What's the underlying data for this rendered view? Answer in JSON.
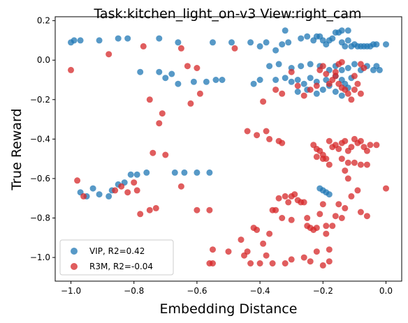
{
  "chart_data": {
    "type": "scatter",
    "title": "Task:kitchen_light_on-v3 View:right_cam",
    "xlabel": "Embedding Distance",
    "ylabel": "True Reward",
    "xlim": [
      -1.05,
      0.05
    ],
    "ylim": [
      -1.12,
      0.22
    ],
    "xticks": [
      -1.0,
      -0.8,
      -0.6,
      -0.4,
      -0.2,
      0.0
    ],
    "xtick_labels": [
      "−1.0",
      "−0.8",
      "−0.6",
      "−0.4",
      "−0.2",
      "0.0"
    ],
    "yticks": [
      0.2,
      0.0,
      -0.2,
      -0.4,
      -0.6,
      -0.8,
      -1.0
    ],
    "ytick_labels": [
      "0.2",
      "0.0",
      "−0.2",
      "−0.4",
      "−0.6",
      "−0.8",
      "−1.0"
    ],
    "grid": false,
    "legend_position": "lower-left",
    "series": [
      {
        "name": "VIP, R2=0.42",
        "color": "#1f77b4",
        "points": [
          [
            -1.0,
            0.09
          ],
          [
            -0.99,
            0.1
          ],
          [
            -0.97,
            0.1
          ],
          [
            -0.91,
            0.1
          ],
          [
            -0.85,
            0.11
          ],
          [
            -0.82,
            0.11
          ],
          [
            -0.72,
            0.11
          ],
          [
            -0.66,
            0.09
          ],
          [
            -0.55,
            0.09
          ],
          [
            -0.49,
            0.09
          ],
          [
            -0.43,
            0.09
          ],
          [
            -0.4,
            0.07
          ],
          [
            -0.38,
            0.09
          ],
          [
            -0.35,
            0.05
          ],
          [
            -0.33,
            0.08
          ],
          [
            -0.31,
            0.09
          ],
          [
            -0.27,
            0.11
          ],
          [
            -0.25,
            0.12
          ],
          [
            -0.23,
            0.1
          ],
          [
            -0.22,
            0.12
          ],
          [
            -0.21,
            0.12
          ],
          [
            -0.2,
            0.1
          ],
          [
            -0.19,
            0.08
          ],
          [
            -0.18,
            0.1
          ],
          [
            -0.17,
            0.11
          ],
          [
            -0.16,
            0.14
          ],
          [
            -0.15,
            0.14
          ],
          [
            -0.14,
            0.09
          ],
          [
            -0.13,
            0.07
          ],
          [
            -0.12,
            0.1
          ],
          [
            -0.11,
            0.07
          ],
          [
            -0.1,
            0.08
          ],
          [
            -0.09,
            0.07
          ],
          [
            -0.08,
            0.07
          ],
          [
            -0.07,
            0.07
          ],
          [
            -0.06,
            0.07
          ],
          [
            -0.05,
            0.07
          ],
          [
            -0.04,
            0.08
          ],
          [
            -0.03,
            0.08
          ],
          [
            0.0,
            0.08
          ],
          [
            -0.32,
            0.15
          ],
          [
            -0.14,
            0.15
          ],
          [
            -0.12,
            0.15
          ],
          [
            -0.37,
            -0.03
          ],
          [
            -0.34,
            -0.02
          ],
          [
            -0.3,
            -0.04
          ],
          [
            -0.27,
            -0.03
          ],
          [
            -0.24,
            -0.02
          ],
          [
            -0.21,
            -0.03
          ],
          [
            -0.18,
            -0.05
          ],
          [
            -0.16,
            -0.03
          ],
          [
            -0.14,
            -0.05
          ],
          [
            -0.12,
            -0.04
          ],
          [
            -0.1,
            -0.02
          ],
          [
            -0.08,
            -0.05
          ],
          [
            -0.06,
            -0.03
          ],
          [
            -0.04,
            -0.05
          ],
          [
            -0.03,
            -0.03
          ],
          [
            -0.02,
            -0.05
          ],
          [
            -0.11,
            -0.09
          ],
          [
            -0.14,
            -0.1
          ],
          [
            -0.16,
            -0.08
          ],
          [
            -0.19,
            -0.1
          ],
          [
            -0.22,
            -0.11
          ],
          [
            -0.24,
            -0.09
          ],
          [
            -0.26,
            -0.12
          ],
          [
            -0.28,
            -0.1
          ],
          [
            -0.3,
            -0.11
          ],
          [
            -0.32,
            -0.09
          ],
          [
            -0.13,
            -0.12
          ],
          [
            -0.12,
            -0.14
          ],
          [
            -0.18,
            -0.13
          ],
          [
            -0.2,
            -0.15
          ],
          [
            -0.16,
            -0.16
          ],
          [
            -0.14,
            -0.18
          ],
          [
            -0.22,
            -0.17
          ],
          [
            -0.25,
            -0.15
          ],
          [
            -0.28,
            -0.16
          ],
          [
            -0.35,
            -0.1
          ],
          [
            -0.4,
            -0.1
          ],
          [
            -0.42,
            -0.12
          ],
          [
            -0.52,
            -0.1
          ],
          [
            -0.54,
            -0.1
          ],
          [
            -0.57,
            -0.11
          ],
          [
            -0.61,
            -0.11
          ],
          [
            -0.66,
            -0.12
          ],
          [
            -0.7,
            -0.09
          ],
          [
            -0.68,
            -0.07
          ],
          [
            -0.72,
            -0.06
          ],
          [
            -0.78,
            -0.06
          ],
          [
            -0.97,
            -0.67
          ],
          [
            -0.95,
            -0.69
          ],
          [
            -0.93,
            -0.65
          ],
          [
            -0.91,
            -0.68
          ],
          [
            -0.88,
            -0.69
          ],
          [
            -0.87,
            -0.66
          ],
          [
            -0.85,
            -0.63
          ],
          [
            -0.83,
            -0.62
          ],
          [
            -0.81,
            -0.58
          ],
          [
            -0.79,
            -0.58
          ],
          [
            -0.76,
            -0.57
          ],
          [
            -0.67,
            -0.57
          ],
          [
            -0.64,
            -0.57
          ],
          [
            -0.6,
            -0.57
          ],
          [
            -0.56,
            -0.57
          ],
          [
            -0.2,
            -0.66
          ],
          [
            -0.19,
            -0.67
          ],
          [
            -0.18,
            -0.68
          ],
          [
            -0.21,
            -0.65
          ]
        ]
      },
      {
        "name": "R3M, R2=-0.04",
        "color": "#d62728",
        "points": [
          [
            -1.0,
            -0.05
          ],
          [
            -0.98,
            -0.61
          ],
          [
            -0.96,
            -0.69
          ],
          [
            -0.88,
            0.03
          ],
          [
            -0.86,
            -0.66
          ],
          [
            -0.84,
            -0.64
          ],
          [
            -0.82,
            -0.67
          ],
          [
            -0.8,
            -0.62
          ],
          [
            -0.79,
            -0.66
          ],
          [
            -0.77,
            0.07
          ],
          [
            -0.75,
            -0.2
          ],
          [
            -0.74,
            -0.47
          ],
          [
            -0.73,
            -0.75
          ],
          [
            -0.72,
            -0.32
          ],
          [
            -0.71,
            -0.27
          ],
          [
            -0.7,
            -0.48
          ],
          [
            -0.78,
            -0.78
          ],
          [
            -0.75,
            -0.76
          ],
          [
            -0.65,
            0.06
          ],
          [
            -0.65,
            -0.64
          ],
          [
            -0.63,
            -0.03
          ],
          [
            -0.62,
            -0.22
          ],
          [
            -0.6,
            -0.04
          ],
          [
            -0.59,
            -0.17
          ],
          [
            -0.56,
            -0.76
          ],
          [
            -0.6,
            -0.76
          ],
          [
            -0.55,
            -0.96
          ],
          [
            -0.56,
            -1.03
          ],
          [
            -0.55,
            -1.03
          ],
          [
            -0.5,
            -0.97
          ],
          [
            -0.48,
            0.06
          ],
          [
            -0.46,
            -0.91
          ],
          [
            -0.45,
            -0.99
          ],
          [
            -0.44,
            -0.97
          ],
          [
            -0.43,
            -1.03
          ],
          [
            -0.42,
            -0.85
          ],
          [
            -0.41,
            -0.86
          ],
          [
            -0.4,
            -1.03
          ],
          [
            -0.39,
            -0.93
          ],
          [
            -0.38,
            -0.99
          ],
          [
            -0.37,
            -0.88
          ],
          [
            -0.36,
            -0.76
          ],
          [
            -0.35,
            -0.76
          ],
          [
            -0.34,
            -0.41
          ],
          [
            -0.33,
            -0.42
          ],
          [
            -0.34,
            -0.7
          ],
          [
            -0.33,
            -0.8
          ],
          [
            -0.32,
            -0.69
          ],
          [
            -0.31,
            -0.72
          ],
          [
            -0.3,
            -0.69
          ],
          [
            -0.3,
            -0.81
          ],
          [
            -0.29,
            -0.68
          ],
          [
            -0.28,
            -0.71
          ],
          [
            -0.27,
            -0.72
          ],
          [
            -0.26,
            -0.72
          ],
          [
            -0.25,
            -0.8
          ],
          [
            -0.25,
            -0.84
          ],
          [
            -0.24,
            -0.85
          ],
          [
            -0.23,
            -0.86
          ],
          [
            -0.22,
            -0.85
          ],
          [
            -0.21,
            -0.78
          ],
          [
            -0.2,
            -0.73
          ],
          [
            -0.19,
            -0.84
          ],
          [
            -0.19,
            -0.88
          ],
          [
            -0.18,
            -0.96
          ],
          [
            -0.18,
            -1.02
          ],
          [
            -0.2,
            -1.04
          ],
          [
            -0.22,
            -0.97
          ],
          [
            -0.24,
            -1.02
          ],
          [
            -0.26,
            -1.0
          ],
          [
            -0.3,
            -1.01
          ],
          [
            -0.32,
            -1.03
          ],
          [
            -0.36,
            -1.03
          ],
          [
            -0.38,
            -0.36
          ],
          [
            -0.37,
            -0.4
          ],
          [
            -0.41,
            -0.38
          ],
          [
            -0.44,
            -0.36
          ],
          [
            -0.39,
            -0.21
          ],
          [
            -0.35,
            -0.15
          ],
          [
            -0.33,
            -0.17
          ],
          [
            -0.3,
            -0.06
          ],
          [
            -0.28,
            -0.13
          ],
          [
            -0.26,
            -0.18
          ],
          [
            -0.24,
            -0.15
          ],
          [
            -0.22,
            -0.13
          ],
          [
            -0.21,
            -0.05
          ],
          [
            -0.2,
            -0.03
          ],
          [
            -0.19,
            -0.07
          ],
          [
            -0.18,
            -0.12
          ],
          [
            -0.17,
            -0.1
          ],
          [
            -0.16,
            -0.08
          ],
          [
            -0.15,
            -0.12
          ],
          [
            -0.14,
            -0.14
          ],
          [
            -0.13,
            -0.15
          ],
          [
            -0.12,
            -0.17
          ],
          [
            -0.11,
            -0.2
          ],
          [
            -0.1,
            -0.15
          ],
          [
            -0.09,
            -0.12
          ],
          [
            -0.08,
            -0.17
          ],
          [
            -0.07,
            -0.04
          ],
          [
            -0.08,
            -0.02
          ],
          [
            -0.1,
            -0.08
          ],
          [
            -0.14,
            -0.01
          ],
          [
            -0.15,
            -0.02
          ],
          [
            -0.16,
            -0.06
          ],
          [
            -0.23,
            -0.43
          ],
          [
            -0.22,
            -0.45
          ],
          [
            -0.21,
            -0.46
          ],
          [
            -0.2,
            -0.48
          ],
          [
            -0.19,
            -0.5
          ],
          [
            -0.18,
            -0.41
          ],
          [
            -0.17,
            -0.44
          ],
          [
            -0.16,
            -0.43
          ],
          [
            -0.15,
            -0.45
          ],
          [
            -0.14,
            -0.42
          ],
          [
            -0.13,
            -0.41
          ],
          [
            -0.12,
            -0.46
          ],
          [
            -0.11,
            -0.44
          ],
          [
            -0.1,
            -0.4
          ],
          [
            -0.09,
            -0.42
          ],
          [
            -0.08,
            -0.41
          ],
          [
            -0.07,
            -0.44
          ],
          [
            -0.06,
            -0.46
          ],
          [
            -0.05,
            -0.43
          ],
          [
            -0.03,
            -0.43
          ],
          [
            -0.2,
            -0.5
          ],
          [
            -0.22,
            -0.49
          ],
          [
            -0.18,
            -0.53
          ],
          [
            -0.14,
            -0.5
          ],
          [
            -0.12,
            -0.52
          ],
          [
            -0.1,
            -0.52
          ],
          [
            -0.08,
            -0.53
          ],
          [
            -0.06,
            -0.53
          ],
          [
            -0.13,
            -0.56
          ],
          [
            -0.12,
            -0.6
          ],
          [
            -0.09,
            -0.66
          ],
          [
            -0.11,
            -0.69
          ],
          [
            -0.13,
            -0.75
          ],
          [
            -0.15,
            -0.73
          ],
          [
            -0.16,
            -0.79
          ],
          [
            -0.17,
            -0.84
          ],
          [
            -0.08,
            -0.77
          ],
          [
            -0.06,
            -0.79
          ],
          [
            -0.14,
            -0.8
          ],
          [
            0.0,
            -0.65
          ]
        ]
      }
    ]
  }
}
